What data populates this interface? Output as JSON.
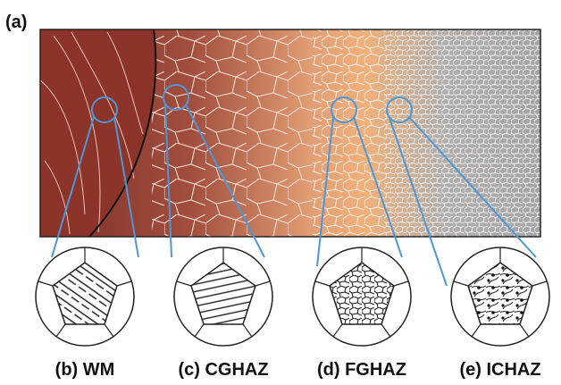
{
  "figure": {
    "main_label": "(a)",
    "panels": [
      {
        "label": "(b) WM"
      },
      {
        "label": "(c) CGHAZ"
      },
      {
        "label": "(d) FGHAZ"
      },
      {
        "label": "(e) ICHAZ"
      }
    ]
  }
}
